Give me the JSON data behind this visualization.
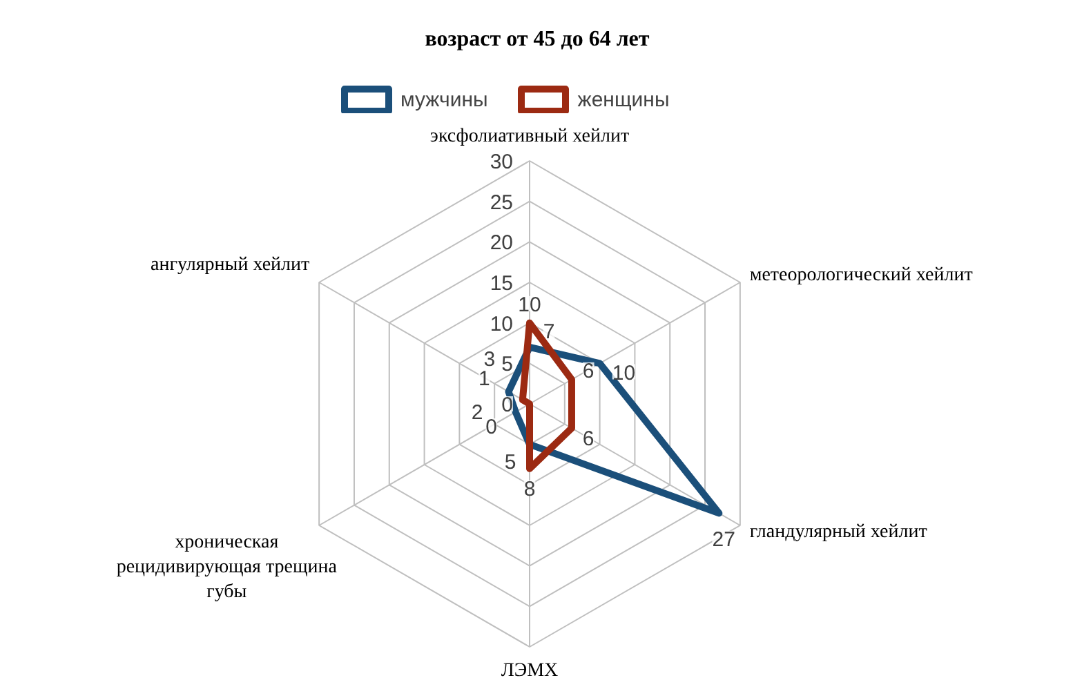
{
  "chart_data": {
    "type": "radar",
    "title": "возраст от 45 до 64 лет",
    "categories": [
      "эксфолиативный хейлит",
      "метеорологический хейлит",
      "гландулярный хейлит",
      "ЛЭМХ",
      "хроническая\nрецидивирующая трещина\nгубы",
      "ангулярный хейлит"
    ],
    "series": [
      {
        "name": "мужчины",
        "color": "#1b4f7a",
        "values": [
          7,
          10,
          27,
          5,
          2,
          3
        ]
      },
      {
        "name": "женщины",
        "color": "#9c2a12",
        "values": [
          10,
          6,
          6,
          8,
          0,
          1
        ]
      }
    ],
    "ylim": [
      0,
      30
    ],
    "yticks": [
      0,
      5,
      10,
      15,
      20,
      25,
      30
    ],
    "grid": true,
    "legend": "top",
    "data_labels": true
  }
}
